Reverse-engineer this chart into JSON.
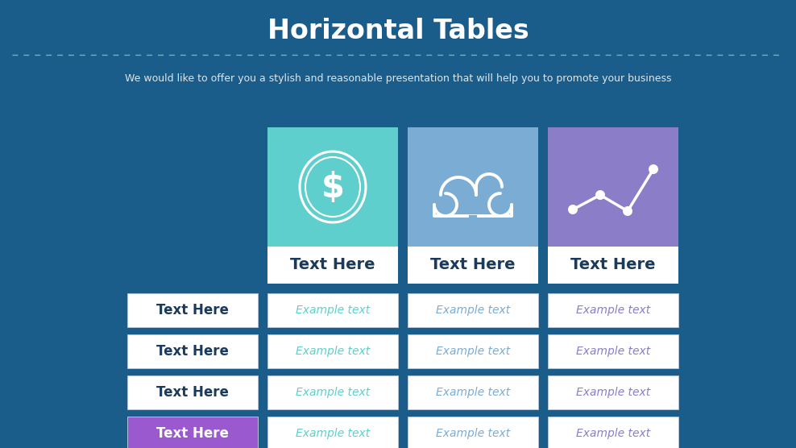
{
  "title": "Horizontal Tables",
  "subtitle": "We would like to offer you a stylish and reasonable presentation that will help you to promote your business",
  "bg_color": "#1a5c8a",
  "title_color": "#ffffff",
  "subtitle_color": "#ffffff",
  "dashed_line_color": "#7fbcd2",
  "col_colors": [
    "#5ecfcc",
    "#7bacd4",
    "#8b7dc8"
  ],
  "col_header_text_color": "#1a3a5c",
  "col_labels": [
    "Text Here",
    "Text Here",
    "Text Here"
  ],
  "row_labels": [
    "Text Here",
    "Text Here",
    "Text Here",
    "Text Here"
  ],
  "row_label_colors": [
    "#ffffff",
    "#ffffff",
    "#ffffff",
    "#9b59d0"
  ],
  "row_label_text_colors": [
    "#1a3a5c",
    "#1a3a5c",
    "#1a3a5c",
    "#ffffff"
  ],
  "example_text_colors": [
    "#5ecfcc",
    "#7bacd4",
    "#8b7dc8"
  ],
  "cell_bg": "#ffffff",
  "cell_border": "#b0c4d8"
}
